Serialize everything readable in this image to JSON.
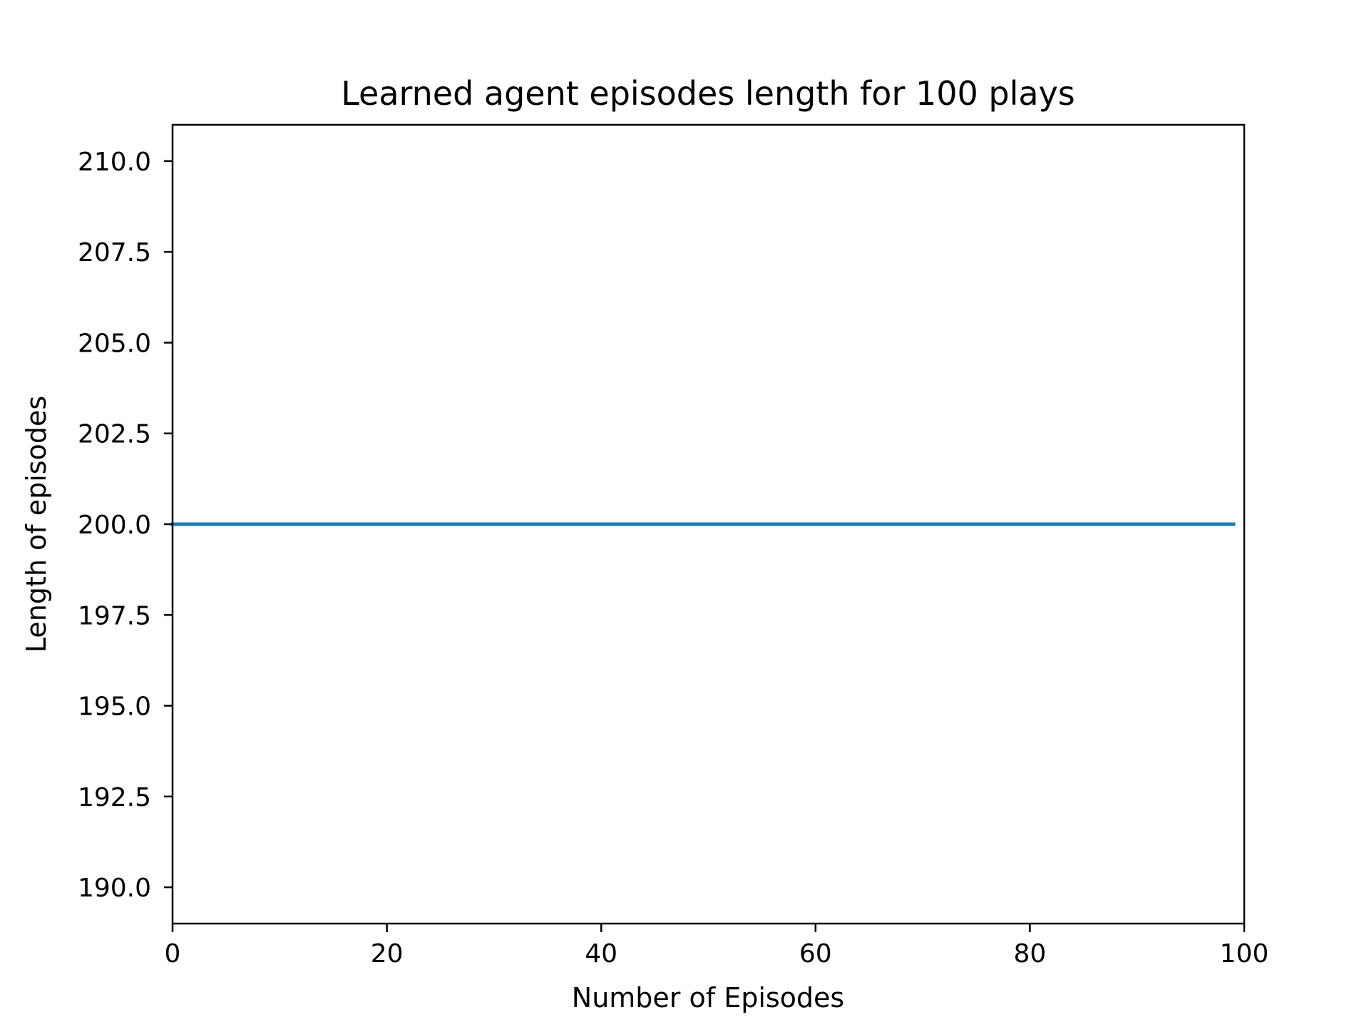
{
  "chart_data": {
    "type": "line",
    "title": "Learned agent episodes length for 100 plays",
    "xlabel": "Number of Episodes",
    "ylabel": "Length of episodes",
    "xlim": [
      0,
      100
    ],
    "ylim": [
      189,
      211
    ],
    "x_ticks": [
      0,
      20,
      40,
      60,
      80,
      100
    ],
    "x_tick_labels": [
      "0",
      "20",
      "40",
      "60",
      "80",
      "100"
    ],
    "y_ticks": [
      190.0,
      192.5,
      195.0,
      197.5,
      200.0,
      202.5,
      205.0,
      207.5,
      210.0
    ],
    "y_tick_labels": [
      "190.0",
      "192.5",
      "195.0",
      "197.5",
      "200.0",
      "202.5",
      "205.0",
      "207.5",
      "210.0"
    ],
    "grid": false,
    "series": [
      {
        "color": "#1f77b4",
        "x": [
          0,
          99
        ],
        "y": [
          200,
          200
        ]
      }
    ]
  }
}
